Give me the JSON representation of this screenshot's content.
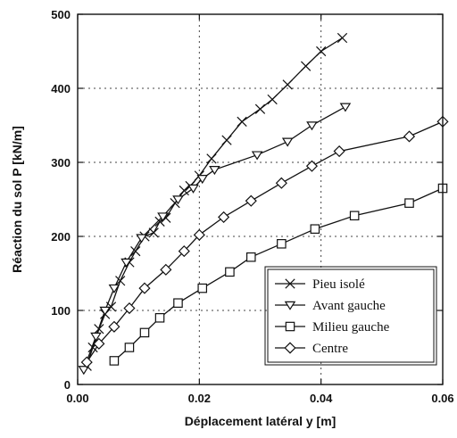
{
  "chart_data": {
    "type": "line",
    "title": "",
    "xlabel": "Déplacement latéral y [m]",
    "ylabel": "Réaction du sol P [kN/m]",
    "xlim": [
      0,
      0.06
    ],
    "ylim": [
      0,
      500
    ],
    "xticks": [
      "0.00",
      "0.02",
      "0.04",
      "0.06"
    ],
    "yticks": [
      "0",
      "100",
      "200",
      "300",
      "400",
      "500"
    ],
    "grid": true,
    "legend_position": "bottom-right",
    "series": [
      {
        "name": "Pieu isolé",
        "marker": "x",
        "points": [
          [
            0.0015,
            25
          ],
          [
            0.0025,
            50
          ],
          [
            0.0035,
            75
          ],
          [
            0.0045,
            95
          ],
          [
            0.0055,
            105
          ],
          [
            0.007,
            140
          ],
          [
            0.0085,
            165
          ],
          [
            0.0095,
            180
          ],
          [
            0.011,
            200
          ],
          [
            0.0125,
            205
          ],
          [
            0.0135,
            220
          ],
          [
            0.0145,
            225
          ],
          [
            0.016,
            245
          ],
          [
            0.0175,
            262
          ],
          [
            0.0185,
            268
          ],
          [
            0.02,
            282
          ],
          [
            0.022,
            305
          ],
          [
            0.0245,
            330
          ],
          [
            0.027,
            355
          ],
          [
            0.03,
            372
          ],
          [
            0.032,
            385
          ],
          [
            0.0345,
            405
          ],
          [
            0.0375,
            430
          ],
          [
            0.04,
            450
          ],
          [
            0.0435,
            468
          ]
        ]
      },
      {
        "name": "Avant gauche",
        "marker": "triangle-down",
        "points": [
          [
            0.001,
            20
          ],
          [
            0.003,
            65
          ],
          [
            0.0045,
            100
          ],
          [
            0.006,
            130
          ],
          [
            0.008,
            165
          ],
          [
            0.0105,
            198
          ],
          [
            0.014,
            227
          ],
          [
            0.0165,
            250
          ],
          [
            0.019,
            265
          ],
          [
            0.0205,
            278
          ],
          [
            0.0225,
            290
          ],
          [
            0.0295,
            310
          ],
          [
            0.0345,
            328
          ],
          [
            0.0385,
            350
          ],
          [
            0.044,
            375
          ]
        ]
      },
      {
        "name": "Milieu gauche",
        "marker": "square",
        "points": [
          [
            0.006,
            32
          ],
          [
            0.0085,
            50
          ],
          [
            0.011,
            70
          ],
          [
            0.0135,
            90
          ],
          [
            0.0165,
            110
          ],
          [
            0.0205,
            130
          ],
          [
            0.025,
            152
          ],
          [
            0.0285,
            172
          ],
          [
            0.0335,
            190
          ],
          [
            0.039,
            210
          ],
          [
            0.0455,
            228
          ],
          [
            0.0545,
            245
          ],
          [
            0.06,
            265
          ]
        ]
      },
      {
        "name": "Centre",
        "marker": "diamond",
        "points": [
          [
            0.0015,
            30
          ],
          [
            0.0035,
            55
          ],
          [
            0.006,
            78
          ],
          [
            0.0085,
            103
          ],
          [
            0.011,
            130
          ],
          [
            0.0145,
            155
          ],
          [
            0.0175,
            180
          ],
          [
            0.02,
            202
          ],
          [
            0.024,
            226
          ],
          [
            0.0285,
            248
          ],
          [
            0.0335,
            272
          ],
          [
            0.0385,
            295
          ],
          [
            0.043,
            315
          ],
          [
            0.0545,
            335
          ],
          [
            0.06,
            355
          ]
        ]
      }
    ]
  }
}
